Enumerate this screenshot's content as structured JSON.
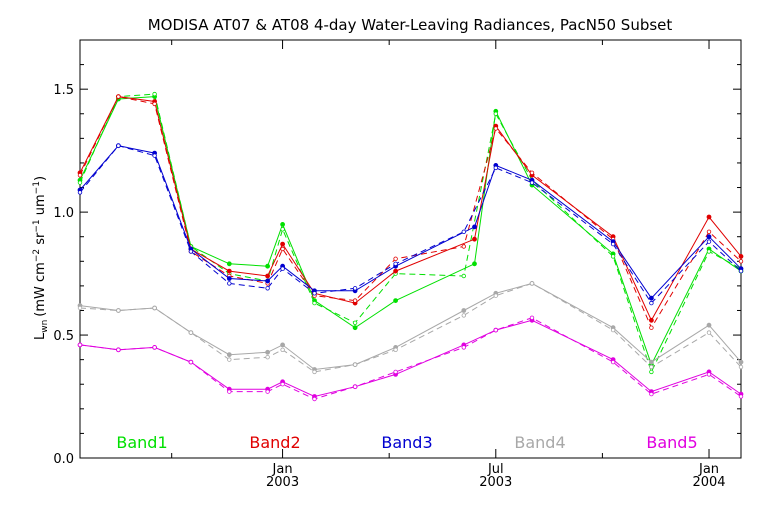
{
  "chart_data": {
    "type": "line",
    "title": "MODISA AT07 & AT08 4-day Water-Leaving Radiances, PacN50 Subset",
    "ylabel": "Lwn (mW cm-2 sr-1 um-1)",
    "ylabel_parts": {
      "main": "L",
      "sub": "wn",
      "units_open": "(mW cm",
      "exp1": "−2",
      "sr": " sr",
      "exp2": "−1",
      "um": " um",
      "exp3": "−1",
      "close": ")"
    },
    "xlabel": "",
    "ylim": [
      0,
      1.7
    ],
    "xlim": [
      0,
      31
    ],
    "yticks": [
      {
        "value": 0.0,
        "label": "0.0"
      },
      {
        "value": 0.5,
        "label": "0.5"
      },
      {
        "value": 1.0,
        "label": "1.0"
      },
      {
        "value": 1.5,
        "label": "1.5"
      }
    ],
    "xticks_major": [
      {
        "value": 9.5,
        "line1": "Jan",
        "line2": "2003"
      },
      {
        "value": 19.5,
        "line1": "Jul",
        "line2": "2003"
      },
      {
        "value": 29.5,
        "line1": "Jan",
        "line2": "2004"
      }
    ],
    "xticks_minor": [
      4.3,
      14.5,
      24.5
    ],
    "legend": [
      {
        "label": "Band1",
        "color": "#00e000"
      },
      {
        "label": "Band2",
        "color": "#e00000"
      },
      {
        "label": "Band3",
        "color": "#0000d0"
      },
      {
        "label": "Band4",
        "color": "#a8a8a8"
      },
      {
        "label": "Band5",
        "color": "#e000e0"
      }
    ],
    "series": [
      {
        "name": "Band1",
        "color": "#00e000",
        "style": "solid",
        "x": [
          0,
          1.8,
          3.5,
          5.2,
          7.0,
          8.8,
          9.5,
          11.0,
          12.9,
          14.8,
          18.5,
          19.5,
          21.2,
          25.0,
          26.8,
          29.5,
          31
        ],
        "values": [
          1.13,
          1.46,
          1.47,
          0.86,
          0.79,
          0.78,
          0.95,
          0.64,
          0.53,
          0.64,
          0.79,
          1.41,
          1.11,
          0.83,
          0.38,
          0.85,
          0.76
        ]
      },
      {
        "name": "Band1",
        "color": "#00e000",
        "style": "dashed",
        "x": [
          0,
          1.8,
          3.5,
          5.2,
          7.0,
          8.8,
          9.5,
          11.0,
          12.9,
          14.8,
          18.0,
          19.5,
          21.2,
          25.0,
          26.8,
          29.5,
          31
        ],
        "values": [
          1.12,
          1.47,
          1.48,
          0.86,
          0.75,
          0.72,
          0.93,
          0.63,
          0.55,
          0.75,
          0.74,
          1.4,
          1.13,
          0.82,
          0.35,
          0.84,
          0.77
        ]
      },
      {
        "name": "Band2",
        "color": "#e00000",
        "style": "solid",
        "x": [
          0,
          1.8,
          3.5,
          5.2,
          7.0,
          8.8,
          9.5,
          11.0,
          12.9,
          14.8,
          18.5,
          19.5,
          21.2,
          25.0,
          26.8,
          29.5,
          31
        ],
        "values": [
          1.16,
          1.47,
          1.45,
          0.85,
          0.76,
          0.74,
          0.87,
          0.67,
          0.63,
          0.76,
          0.89,
          1.35,
          1.15,
          0.9,
          0.56,
          0.98,
          0.82
        ]
      },
      {
        "name": "Band2",
        "color": "#e00000",
        "style": "dashed",
        "x": [
          0,
          1.8,
          3.5,
          5.2,
          7.0,
          8.8,
          9.5,
          11.0,
          12.9,
          14.8,
          18.0,
          19.5,
          21.2,
          25.0,
          26.8,
          29.5,
          31
        ],
        "values": [
          1.15,
          1.47,
          1.44,
          0.84,
          0.74,
          0.71,
          0.85,
          0.66,
          0.64,
          0.81,
          0.86,
          1.34,
          1.16,
          0.89,
          0.53,
          0.92,
          0.8
        ]
      },
      {
        "name": "Band3",
        "color": "#0000d0",
        "style": "solid",
        "x": [
          0,
          1.8,
          3.5,
          5.2,
          7.0,
          8.8,
          9.5,
          11.0,
          12.9,
          14.8,
          18.5,
          19.5,
          21.2,
          25.0,
          26.8,
          29.5,
          31
        ],
        "values": [
          1.09,
          1.27,
          1.24,
          0.85,
          0.73,
          0.72,
          0.78,
          0.68,
          0.68,
          0.78,
          0.94,
          1.19,
          1.13,
          0.88,
          0.65,
          0.9,
          0.77
        ]
      },
      {
        "name": "Band3",
        "color": "#0000d0",
        "style": "dashed",
        "x": [
          0,
          1.8,
          3.5,
          5.2,
          7.0,
          8.8,
          9.5,
          11.0,
          12.9,
          14.8,
          18.0,
          19.5,
          21.2,
          25.0,
          26.8,
          29.5,
          31
        ],
        "values": [
          1.08,
          1.27,
          1.23,
          0.84,
          0.71,
          0.69,
          0.77,
          0.67,
          0.69,
          0.79,
          0.92,
          1.18,
          1.12,
          0.87,
          0.63,
          0.88,
          0.76
        ]
      },
      {
        "name": "Band4",
        "color": "#a8a8a8",
        "style": "solid",
        "x": [
          0,
          1.8,
          3.5,
          5.2,
          7.0,
          8.8,
          9.5,
          11.0,
          12.9,
          14.8,
          18.0,
          19.5,
          21.2,
          25.0,
          26.8,
          29.5,
          31
        ],
        "values": [
          0.62,
          0.6,
          0.61,
          0.51,
          0.42,
          0.43,
          0.46,
          0.36,
          0.38,
          0.45,
          0.6,
          0.67,
          0.71,
          0.53,
          0.39,
          0.54,
          0.39
        ]
      },
      {
        "name": "Band4",
        "color": "#a8a8a8",
        "style": "dashed",
        "x": [
          0,
          1.8,
          3.5,
          5.2,
          7.0,
          8.8,
          9.5,
          11.0,
          12.9,
          14.8,
          18.0,
          19.5,
          21.2,
          25.0,
          26.8,
          29.5,
          31
        ],
        "values": [
          0.61,
          0.6,
          0.61,
          0.51,
          0.4,
          0.41,
          0.44,
          0.35,
          0.38,
          0.44,
          0.58,
          0.66,
          0.71,
          0.52,
          0.37,
          0.51,
          0.37
        ]
      },
      {
        "name": "Band5",
        "color": "#e000e0",
        "style": "solid",
        "x": [
          0,
          1.8,
          3.5,
          5.2,
          7.0,
          8.8,
          9.5,
          11.0,
          12.9,
          14.8,
          18.0,
          19.5,
          21.2,
          25.0,
          26.8,
          29.5,
          31
        ],
        "values": [
          0.46,
          0.44,
          0.45,
          0.39,
          0.28,
          0.28,
          0.31,
          0.25,
          0.29,
          0.34,
          0.46,
          0.52,
          0.56,
          0.4,
          0.27,
          0.35,
          0.26
        ]
      },
      {
        "name": "Band5",
        "color": "#e000e0",
        "style": "dashed",
        "x": [
          0,
          1.8,
          3.5,
          5.2,
          7.0,
          8.8,
          9.5,
          11.0,
          12.9,
          14.8,
          18.0,
          19.5,
          21.2,
          25.0,
          26.8,
          29.5,
          31
        ],
        "values": [
          0.46,
          0.44,
          0.45,
          0.39,
          0.27,
          0.27,
          0.3,
          0.24,
          0.29,
          0.35,
          0.45,
          0.52,
          0.57,
          0.39,
          0.26,
          0.34,
          0.25
        ]
      }
    ]
  }
}
